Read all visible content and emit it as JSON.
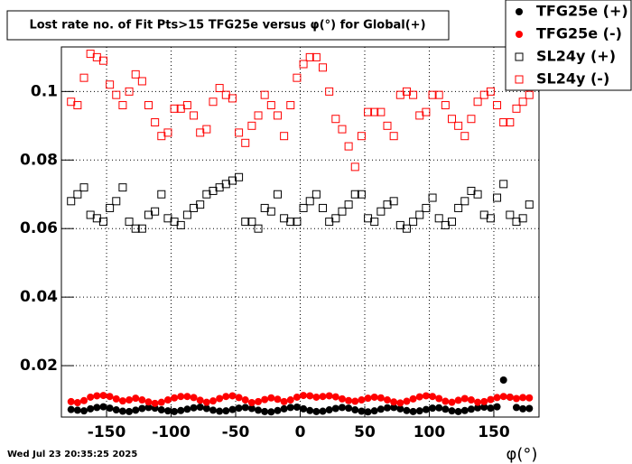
{
  "chart_data": {
    "type": "scatter",
    "title": "Lost rate no. of Fit Pts>15 TFG25e versus φ(°) for Global(+)",
    "x_label": "φ(°)",
    "footer": "Wed Jul 23 20:35:25 2025",
    "grid": true,
    "legend": "upper right",
    "xlim": [
      -185,
      185
    ],
    "ylim": [
      0.005,
      0.113
    ],
    "xticks": [
      -150,
      -100,
      -50,
      0,
      50,
      100,
      150
    ],
    "yticks": [
      0.02,
      0.04,
      0.06,
      0.08,
      0.1
    ],
    "x": [
      -177.5,
      -172.5,
      -167.5,
      -162.5,
      -157.5,
      -152.5,
      -147.5,
      -142.5,
      -137.5,
      -132.5,
      -127.5,
      -122.5,
      -117.5,
      -112.5,
      -107.5,
      -102.5,
      -97.5,
      -92.5,
      -87.5,
      -82.5,
      -77.5,
      -72.5,
      -67.5,
      -62.5,
      -57.5,
      -52.5,
      -47.5,
      -42.5,
      -37.5,
      -32.5,
      -27.5,
      -22.5,
      -17.5,
      -12.5,
      -7.5,
      -2.5,
      2.5,
      7.5,
      12.5,
      17.5,
      22.5,
      27.5,
      32.5,
      37.5,
      42.5,
      47.5,
      52.5,
      57.5,
      62.5,
      67.5,
      72.5,
      77.5,
      82.5,
      87.5,
      92.5,
      97.5,
      102.5,
      107.5,
      112.5,
      117.5,
      122.5,
      127.5,
      132.5,
      137.5,
      142.5,
      147.5,
      152.5,
      157.5,
      162.5,
      167.5,
      172.5,
      177.5
    ],
    "series": [
      {
        "name": "TFG25e (+)",
        "color": "#000000",
        "marker": "filled-circle",
        "values": [
          0.0072,
          0.007,
          0.0068,
          0.0074,
          0.0078,
          0.008,
          0.0076,
          0.0071,
          0.0067,
          0.0066,
          0.007,
          0.0075,
          0.0078,
          0.0076,
          0.0071,
          0.0068,
          0.0066,
          0.0069,
          0.0073,
          0.0077,
          0.0079,
          0.0075,
          0.007,
          0.0067,
          0.0068,
          0.0072,
          0.0076,
          0.0078,
          0.0075,
          0.007,
          0.0066,
          0.0065,
          0.0069,
          0.0074,
          0.0078,
          0.0079,
          0.0074,
          0.0069,
          0.0066,
          0.0067,
          0.0071,
          0.0075,
          0.0078,
          0.0076,
          0.0071,
          0.0067,
          0.0065,
          0.0068,
          0.0073,
          0.0077,
          0.0078,
          0.0074,
          0.0069,
          0.0066,
          0.0068,
          0.0072,
          0.0076,
          0.0077,
          0.0073,
          0.0068,
          0.0066,
          0.0069,
          0.0073,
          0.0077,
          0.0079,
          0.0076,
          0.008,
          0.0158,
          0.0108,
          0.0078,
          0.0074,
          0.0075
        ]
      },
      {
        "name": "TFG25e (-)",
        "color": "#ff0000",
        "marker": "filled-circle",
        "values": [
          0.0095,
          0.0092,
          0.0098,
          0.0108,
          0.0112,
          0.0113,
          0.011,
          0.0103,
          0.0097,
          0.01,
          0.0105,
          0.01,
          0.0094,
          0.009,
          0.0093,
          0.01,
          0.0106,
          0.011,
          0.011,
          0.0107,
          0.0099,
          0.0093,
          0.0097,
          0.0104,
          0.011,
          0.0112,
          0.0107,
          0.01,
          0.0092,
          0.0095,
          0.0101,
          0.0106,
          0.0102,
          0.0095,
          0.01,
          0.0108,
          0.0113,
          0.0112,
          0.0108,
          0.011,
          0.0112,
          0.0109,
          0.0103,
          0.0098,
          0.0096,
          0.01,
          0.0105,
          0.0108,
          0.0106,
          0.01,
          0.0094,
          0.0091,
          0.0096,
          0.0103,
          0.0109,
          0.0112,
          0.011,
          0.0104,
          0.0096,
          0.0093,
          0.0099,
          0.0104,
          0.01,
          0.0093,
          0.0095,
          0.0101,
          0.0107,
          0.011,
          0.0108,
          0.0104,
          0.0107,
          0.0106
        ]
      },
      {
        "name": "SL24y (+)",
        "color": "#000000",
        "marker": "open-square",
        "values": [
          0.068,
          0.07,
          0.072,
          0.064,
          0.063,
          0.062,
          0.066,
          0.068,
          0.072,
          0.062,
          0.06,
          0.06,
          0.064,
          0.065,
          0.07,
          0.063,
          0.062,
          0.061,
          0.064,
          0.066,
          0.067,
          0.07,
          0.071,
          0.072,
          0.073,
          0.074,
          0.075,
          0.062,
          0.062,
          0.06,
          0.066,
          0.065,
          0.07,
          0.063,
          0.062,
          0.062,
          0.066,
          0.068,
          0.07,
          0.066,
          0.062,
          0.063,
          0.065,
          0.067,
          0.07,
          0.07,
          0.063,
          0.062,
          0.065,
          0.067,
          0.068,
          0.061,
          0.06,
          0.062,
          0.064,
          0.066,
          0.069,
          0.063,
          0.061,
          0.062,
          0.066,
          0.068,
          0.071,
          0.07,
          0.064,
          0.063,
          0.069,
          0.073,
          0.064,
          0.062,
          0.063,
          0.067
        ]
      },
      {
        "name": "SL24y (-)",
        "color": "#ff0000",
        "marker": "open-square",
        "values": [
          0.097,
          0.096,
          0.104,
          0.111,
          0.11,
          0.109,
          0.102,
          0.099,
          0.096,
          0.1,
          0.105,
          0.103,
          0.096,
          0.091,
          0.087,
          0.088,
          0.095,
          0.095,
          0.096,
          0.093,
          0.088,
          0.089,
          0.097,
          0.101,
          0.099,
          0.098,
          0.088,
          0.085,
          0.09,
          0.093,
          0.099,
          0.096,
          0.093,
          0.087,
          0.096,
          0.104,
          0.108,
          0.11,
          0.11,
          0.107,
          0.1,
          0.092,
          0.089,
          0.084,
          0.078,
          0.087,
          0.094,
          0.094,
          0.094,
          0.09,
          0.087,
          0.099,
          0.1,
          0.099,
          0.093,
          0.094,
          0.099,
          0.099,
          0.096,
          0.092,
          0.09,
          0.087,
          0.092,
          0.097,
          0.099,
          0.1,
          0.096,
          0.091,
          0.091,
          0.095,
          0.097,
          0.099
        ]
      }
    ]
  }
}
